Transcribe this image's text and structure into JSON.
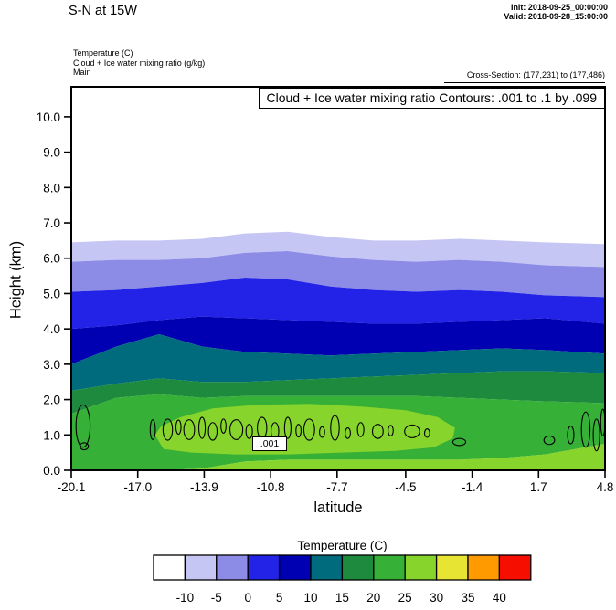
{
  "header": {
    "title": "S-N at 15W",
    "init_label": "Init: 2018-09-25_00:00:00",
    "valid_label": "Valid: 2018-09-28_15:00:00",
    "field_lines": [
      "Temperature  (C)",
      "Cloud + Ice water mixing ratio   (g/kg)",
      "Main"
    ],
    "cross_section": "Cross-Section: (177,231) to (177,486)"
  },
  "chart_data": {
    "type": "heatmap",
    "title": "Cloud + Ice water mixing ratio Contours: .001 to .1 by .099",
    "xlabel": "latitude",
    "ylabel": "Height (km)",
    "xlim": [
      -20.1,
      4.8
    ],
    "ylim": [
      0,
      10.85
    ],
    "grid": false,
    "x_tick_labels": [
      "-20.1",
      "-17.0",
      "-13.9",
      "-10.8",
      "-7.7",
      "-4.5",
      "-1.4",
      "1.7",
      "4.8"
    ],
    "x_tick_values": [
      -20.1,
      -17.0,
      -13.9,
      -10.8,
      -7.7,
      -4.5,
      -1.4,
      1.7,
      4.8
    ],
    "y_tick_labels": [
      "0.0",
      "1.0",
      "2.0",
      "3.0",
      "4.0",
      "5.0",
      "6.0",
      "7.0",
      "8.0",
      "9.0",
      "10.0"
    ],
    "y_tick_values": [
      0,
      1,
      2,
      3,
      4,
      5,
      6,
      7,
      8,
      9,
      10
    ],
    "temperature_field": {
      "units": "C",
      "sample_latitudes": [
        -20.1,
        -18,
        -16,
        -14,
        -12,
        -10,
        -8,
        -6,
        -4,
        -2,
        0,
        2,
        4.8
      ],
      "level_boundaries_c": [
        -10,
        -5,
        0,
        5,
        10,
        15,
        20,
        25
      ],
      "boundary_heights_km": [
        [
          6.45,
          6.5,
          6.5,
          6.55,
          6.7,
          6.75,
          6.6,
          6.5,
          6.5,
          6.55,
          6.5,
          6.45,
          6.4
        ],
        [
          5.9,
          5.95,
          5.95,
          6.0,
          6.15,
          6.2,
          6.05,
          5.95,
          5.9,
          5.95,
          5.9,
          5.8,
          5.75
        ],
        [
          5.05,
          5.1,
          5.2,
          5.3,
          5.45,
          5.4,
          5.2,
          5.1,
          5.05,
          5.1,
          5.05,
          4.95,
          4.9
        ],
        [
          4.0,
          4.1,
          4.25,
          4.35,
          4.3,
          4.25,
          4.2,
          4.15,
          4.15,
          4.2,
          4.25,
          4.3,
          4.15
        ],
        [
          3.0,
          3.5,
          3.85,
          3.5,
          3.35,
          3.3,
          3.25,
          3.3,
          3.35,
          3.4,
          3.45,
          3.4,
          3.3
        ],
        [
          2.25,
          2.45,
          2.6,
          2.5,
          2.5,
          2.55,
          2.6,
          2.65,
          2.7,
          2.75,
          2.8,
          2.8,
          2.75
        ],
        [
          1.6,
          2.05,
          2.15,
          2.05,
          2.1,
          2.1,
          2.1,
          2.1,
          2.1,
          2.05,
          2.0,
          1.95,
          1.9
        ],
        [
          0.0,
          0.0,
          0.0,
          0.05,
          0.25,
          0.3,
          0.3,
          0.3,
          0.3,
          0.3,
          0.35,
          0.45,
          0.75
        ]
      ],
      "band_labels": [
        "below--10",
        "-10-to--5",
        "-5-to-0",
        "0-to-5",
        "5-to-10",
        "10-to-15",
        "15-to-20",
        "20-to-25",
        "25-to-30"
      ],
      "warm_pocket": {
        "label": "25-to-30-pocket",
        "points": [
          [
            -16.2,
            1.0
          ],
          [
            -15.8,
            0.6
          ],
          [
            -14.5,
            0.5
          ],
          [
            -12.5,
            0.45
          ],
          [
            -10,
            0.45
          ],
          [
            -7.5,
            0.5
          ],
          [
            -5,
            0.55
          ],
          [
            -3.2,
            0.65
          ],
          [
            -2.3,
            0.9
          ],
          [
            -2.2,
            1.2
          ],
          [
            -3,
            1.5
          ],
          [
            -4.5,
            1.7
          ],
          [
            -6.5,
            1.8
          ],
          [
            -9,
            1.88
          ],
          [
            -11.5,
            1.85
          ],
          [
            -13.5,
            1.75
          ],
          [
            -15,
            1.5
          ],
          [
            -15.9,
            1.25
          ]
        ]
      }
    },
    "cloud_contours": {
      "label": ".001",
      "contour_levels": ".001 to .1 by .099",
      "color": "#000000",
      "blobs": [
        [
          -19.55,
          1.25,
          0.33,
          0.6
        ],
        [
          -19.5,
          0.68,
          0.2,
          0.1
        ],
        [
          -16.3,
          1.15,
          0.12,
          0.28
        ],
        [
          -15.6,
          1.15,
          0.22,
          0.3
        ],
        [
          -15.1,
          1.22,
          0.12,
          0.2
        ],
        [
          -14.6,
          1.15,
          0.25,
          0.28
        ],
        [
          -14.0,
          1.2,
          0.15,
          0.3
        ],
        [
          -13.5,
          1.1,
          0.2,
          0.25
        ],
        [
          -13.0,
          1.25,
          0.12,
          0.2
        ],
        [
          -12.4,
          1.15,
          0.3,
          0.28
        ],
        [
          -11.8,
          1.1,
          0.15,
          0.2
        ],
        [
          -11.2,
          1.2,
          0.22,
          0.3
        ],
        [
          -10.6,
          1.1,
          0.18,
          0.25
        ],
        [
          -10.0,
          1.2,
          0.15,
          0.3
        ],
        [
          -9.5,
          1.12,
          0.12,
          0.18
        ],
        [
          -9.0,
          1.15,
          0.25,
          0.3
        ],
        [
          -8.4,
          1.08,
          0.12,
          0.15
        ],
        [
          -7.8,
          1.2,
          0.2,
          0.35
        ],
        [
          -7.2,
          1.05,
          0.12,
          0.15
        ],
        [
          -6.6,
          1.15,
          0.15,
          0.2
        ],
        [
          -5.8,
          1.1,
          0.25,
          0.2
        ],
        [
          -5.2,
          1.12,
          0.12,
          0.15
        ],
        [
          -4.2,
          1.1,
          0.35,
          0.18
        ],
        [
          -3.5,
          1.05,
          0.12,
          0.12
        ],
        [
          -2.0,
          0.8,
          0.3,
          0.1
        ],
        [
          2.2,
          0.85,
          0.25,
          0.12
        ],
        [
          3.2,
          1.0,
          0.15,
          0.25
        ],
        [
          3.9,
          1.15,
          0.2,
          0.5
        ],
        [
          4.4,
          1.0,
          0.15,
          0.45
        ],
        [
          4.7,
          1.35,
          0.1,
          0.38
        ]
      ]
    },
    "colorbar": {
      "title": "Temperature  (C)",
      "tick_labels": [
        "-10",
        "-5",
        "0",
        "5",
        "10",
        "15",
        "20",
        "25",
        "30",
        "35",
        "40"
      ],
      "colors": [
        "#ffffff",
        "#c6c6f4",
        "#8c8ce6",
        "#2323e8",
        "#0000b2",
        "#006b7d",
        "#1d8a3d",
        "#36b036",
        "#86d42c",
        "#e8e434",
        "#ff9a00",
        "#f60e00"
      ]
    }
  }
}
